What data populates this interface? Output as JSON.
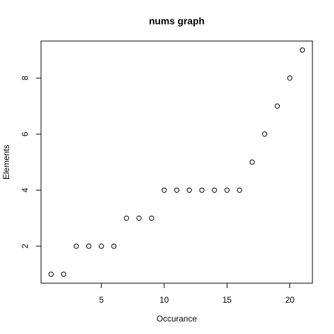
{
  "chart_data": {
    "type": "scatter",
    "title": "nums graph",
    "xlabel": "Occurance",
    "ylabel": "Elements",
    "x": [
      1,
      2,
      3,
      4,
      5,
      6,
      7,
      8,
      9,
      10,
      11,
      12,
      13,
      14,
      15,
      16,
      17,
      18,
      19,
      20,
      21
    ],
    "y": [
      1,
      1,
      2,
      2,
      2,
      2,
      3,
      3,
      3,
      4,
      4,
      4,
      4,
      4,
      4,
      4,
      5,
      6,
      7,
      8,
      9
    ],
    "xlim": [
      0.2,
      21.8
    ],
    "ylim": [
      0.68,
      9.32
    ],
    "xticks": [
      5,
      10,
      15,
      20
    ],
    "yticks": [
      2,
      4,
      6,
      8
    ],
    "grid": false,
    "marker": "open-circle",
    "colors": {
      "axis": "#000000",
      "point": "#000000",
      "background": "#ffffff"
    }
  }
}
